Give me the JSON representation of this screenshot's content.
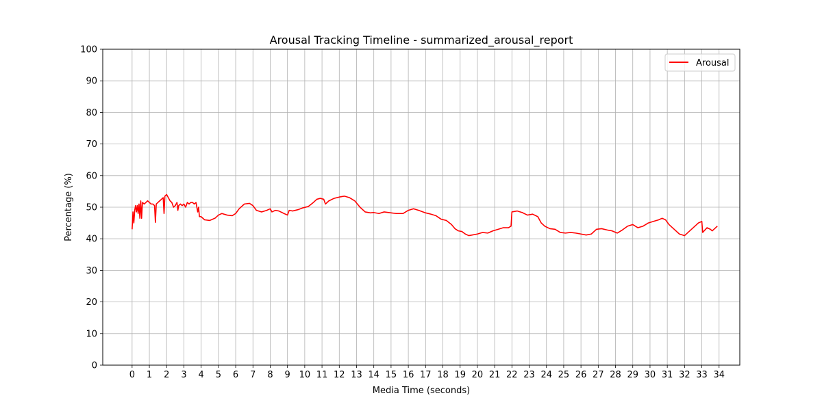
{
  "chart_data": {
    "type": "line",
    "title": "Arousal Tracking Timeline - summarized_arousal_report",
    "xlabel": "Media Time (seconds)",
    "ylabel": "Percentage (%)",
    "xlim": [
      -1.7,
      35.2
    ],
    "ylim": [
      0,
      100
    ],
    "x_ticks": [
      0,
      1,
      2,
      3,
      4,
      5,
      6,
      7,
      8,
      9,
      10,
      11,
      12,
      13,
      14,
      15,
      16,
      17,
      18,
      19,
      20,
      21,
      22,
      23,
      24,
      25,
      26,
      27,
      28,
      29,
      30,
      31,
      32,
      33,
      34
    ],
    "y_ticks": [
      0,
      10,
      20,
      30,
      40,
      50,
      60,
      70,
      80,
      90,
      100
    ],
    "grid": true,
    "legend_position": "top-right",
    "colors": {
      "series": "#ff0000",
      "grid": "#b0b0b0",
      "axes": "#000000"
    },
    "series": [
      {
        "name": "Arousal",
        "color": "#ff0000",
        "points": [
          [
            0.0,
            43.0
          ],
          [
            0.05,
            48.5
          ],
          [
            0.1,
            45.0
          ],
          [
            0.15,
            49.0
          ],
          [
            0.2,
            50.5
          ],
          [
            0.25,
            48.5
          ],
          [
            0.3,
            50.5
          ],
          [
            0.35,
            48.0
          ],
          [
            0.4,
            51.0
          ],
          [
            0.45,
            46.5
          ],
          [
            0.5,
            52.0
          ],
          [
            0.55,
            46.5
          ],
          [
            0.6,
            51.5
          ],
          [
            0.7,
            51.0
          ],
          [
            0.8,
            51.5
          ],
          [
            0.9,
            52.0
          ],
          [
            1.0,
            51.5
          ],
          [
            1.1,
            51.0
          ],
          [
            1.2,
            51.0
          ],
          [
            1.3,
            50.5
          ],
          [
            1.35,
            45.2
          ],
          [
            1.4,
            51.0
          ],
          [
            1.5,
            51.5
          ],
          [
            1.6,
            52.0
          ],
          [
            1.7,
            52.5
          ],
          [
            1.8,
            53.0
          ],
          [
            1.85,
            48.0
          ],
          [
            1.9,
            53.5
          ],
          [
            2.0,
            54.0
          ],
          [
            2.1,
            53.0
          ],
          [
            2.2,
            52.0
          ],
          [
            2.3,
            51.5
          ],
          [
            2.4,
            50.0
          ],
          [
            2.5,
            50.5
          ],
          [
            2.6,
            51.5
          ],
          [
            2.65,
            49.0
          ],
          [
            2.7,
            50.5
          ],
          [
            2.8,
            51.0
          ],
          [
            2.9,
            50.5
          ],
          [
            3.0,
            51.0
          ],
          [
            3.1,
            50.0
          ],
          [
            3.2,
            51.5
          ],
          [
            3.3,
            51.0
          ],
          [
            3.4,
            51.5
          ],
          [
            3.5,
            51.5
          ],
          [
            3.6,
            51.0
          ],
          [
            3.7,
            51.5
          ],
          [
            3.8,
            48.5
          ],
          [
            3.85,
            50.0
          ],
          [
            3.9,
            47.0
          ],
          [
            4.0,
            47.0
          ],
          [
            4.2,
            46.0
          ],
          [
            4.5,
            45.8
          ],
          [
            4.8,
            46.5
          ],
          [
            5.0,
            47.5
          ],
          [
            5.2,
            48.0
          ],
          [
            5.5,
            47.5
          ],
          [
            5.8,
            47.3
          ],
          [
            6.0,
            48.0
          ],
          [
            6.2,
            49.5
          ],
          [
            6.5,
            51.0
          ],
          [
            6.8,
            51.2
          ],
          [
            7.0,
            50.5
          ],
          [
            7.2,
            49.0
          ],
          [
            7.5,
            48.5
          ],
          [
            7.8,
            49.0
          ],
          [
            8.0,
            49.5
          ],
          [
            8.1,
            48.5
          ],
          [
            8.3,
            49.0
          ],
          [
            8.5,
            48.8
          ],
          [
            8.8,
            48.0
          ],
          [
            9.0,
            47.5
          ],
          [
            9.1,
            49.0
          ],
          [
            9.3,
            48.8
          ],
          [
            9.6,
            49.2
          ],
          [
            9.9,
            49.8
          ],
          [
            10.2,
            50.2
          ],
          [
            10.5,
            51.5
          ],
          [
            10.7,
            52.5
          ],
          [
            10.9,
            52.8
          ],
          [
            11.1,
            52.5
          ],
          [
            11.2,
            51.0
          ],
          [
            11.4,
            52.0
          ],
          [
            11.7,
            52.8
          ],
          [
            12.0,
            53.2
          ],
          [
            12.3,
            53.5
          ],
          [
            12.6,
            53.0
          ],
          [
            12.9,
            52.0
          ],
          [
            13.2,
            50.0
          ],
          [
            13.5,
            48.5
          ],
          [
            13.8,
            48.2
          ],
          [
            14.0,
            48.3
          ],
          [
            14.3,
            48.0
          ],
          [
            14.6,
            48.5
          ],
          [
            15.0,
            48.2
          ],
          [
            15.3,
            48.0
          ],
          [
            15.7,
            48.0
          ],
          [
            16.0,
            49.0
          ],
          [
            16.3,
            49.5
          ],
          [
            16.6,
            49.0
          ],
          [
            17.0,
            48.2
          ],
          [
            17.3,
            47.8
          ],
          [
            17.6,
            47.3
          ],
          [
            17.9,
            46.2
          ],
          [
            18.2,
            45.8
          ],
          [
            18.5,
            44.5
          ],
          [
            18.7,
            43.2
          ],
          [
            18.9,
            42.5
          ],
          [
            19.1,
            42.3
          ],
          [
            19.3,
            41.5
          ],
          [
            19.5,
            41.0
          ],
          [
            19.7,
            41.2
          ],
          [
            20.0,
            41.5
          ],
          [
            20.3,
            42.0
          ],
          [
            20.6,
            41.8
          ],
          [
            20.9,
            42.5
          ],
          [
            21.2,
            43.0
          ],
          [
            21.5,
            43.5
          ],
          [
            21.8,
            43.5
          ],
          [
            21.95,
            44.0
          ],
          [
            22.0,
            48.5
          ],
          [
            22.3,
            48.8
          ],
          [
            22.6,
            48.3
          ],
          [
            22.9,
            47.5
          ],
          [
            23.2,
            47.8
          ],
          [
            23.5,
            47.0
          ],
          [
            23.7,
            45.0
          ],
          [
            23.9,
            44.0
          ],
          [
            24.2,
            43.2
          ],
          [
            24.5,
            43.0
          ],
          [
            24.8,
            42.0
          ],
          [
            25.1,
            41.8
          ],
          [
            25.4,
            42.0
          ],
          [
            25.7,
            41.8
          ],
          [
            26.0,
            41.5
          ],
          [
            26.3,
            41.2
          ],
          [
            26.6,
            41.5
          ],
          [
            26.9,
            43.0
          ],
          [
            27.2,
            43.2
          ],
          [
            27.5,
            42.8
          ],
          [
            27.8,
            42.5
          ],
          [
            28.1,
            41.8
          ],
          [
            28.4,
            42.8
          ],
          [
            28.7,
            44.0
          ],
          [
            29.0,
            44.5
          ],
          [
            29.3,
            43.5
          ],
          [
            29.6,
            44.0
          ],
          [
            29.9,
            45.0
          ],
          [
            30.2,
            45.5
          ],
          [
            30.5,
            46.0
          ],
          [
            30.7,
            46.5
          ],
          [
            30.9,
            46.0
          ],
          [
            31.1,
            44.5
          ],
          [
            31.4,
            43.0
          ],
          [
            31.7,
            41.5
          ],
          [
            32.0,
            41.0
          ],
          [
            32.2,
            42.0
          ],
          [
            32.5,
            43.5
          ],
          [
            32.8,
            45.0
          ],
          [
            33.0,
            45.5
          ],
          [
            33.05,
            42.0
          ],
          [
            33.3,
            43.5
          ],
          [
            33.5,
            43.0
          ],
          [
            33.6,
            42.5
          ],
          [
            33.8,
            43.5
          ],
          [
            33.9,
            44.0
          ]
        ]
      }
    ]
  }
}
